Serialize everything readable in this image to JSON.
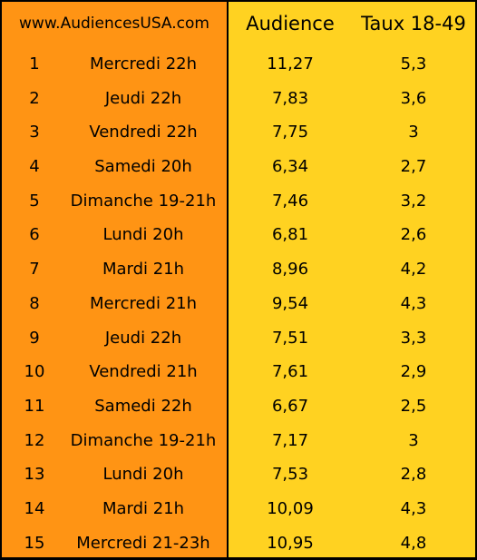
{
  "header": {
    "site": "www.AudiencesUSA.com",
    "audience": "Audience",
    "rate": "Taux 18-49"
  },
  "rows": [
    {
      "rank": "1",
      "day": "Mercredi 22h",
      "audience": "11,27",
      "rate": "5,3"
    },
    {
      "rank": "2",
      "day": "Jeudi 22h",
      "audience": "7,83",
      "rate": "3,6"
    },
    {
      "rank": "3",
      "day": "Vendredi 22h",
      "audience": "7,75",
      "rate": "3"
    },
    {
      "rank": "4",
      "day": "Samedi 20h",
      "audience": "6,34",
      "rate": "2,7"
    },
    {
      "rank": "5",
      "day": "Dimanche 19-21h",
      "audience": "7,46",
      "rate": "3,2"
    },
    {
      "rank": "6",
      "day": "Lundi 20h",
      "audience": "6,81",
      "rate": "2,6"
    },
    {
      "rank": "7",
      "day": "Mardi 21h",
      "audience": "8,96",
      "rate": "4,2"
    },
    {
      "rank": "8",
      "day": "Mercredi 21h",
      "audience": "9,54",
      "rate": "4,3"
    },
    {
      "rank": "9",
      "day": "Jeudi 22h",
      "audience": "7,51",
      "rate": "3,3"
    },
    {
      "rank": "10",
      "day": "Vendredi 21h",
      "audience": "7,61",
      "rate": "2,9"
    },
    {
      "rank": "11",
      "day": "Samedi 22h",
      "audience": "6,67",
      "rate": "2,5"
    },
    {
      "rank": "12",
      "day": "Dimanche 19-21h",
      "audience": "7,17",
      "rate": "3"
    },
    {
      "rank": "13",
      "day": "Lundi 20h",
      "audience": "7,53",
      "rate": "2,8"
    },
    {
      "rank": "14",
      "day": "Mardi 21h",
      "audience": "10,09",
      "rate": "4,3"
    },
    {
      "rank": "15",
      "day": "Mercredi 21-23h",
      "audience": "10,95",
      "rate": "4,8"
    }
  ],
  "colors": {
    "left_column": "#FF9414",
    "right_column": "#FFD221",
    "border": "#000000"
  }
}
